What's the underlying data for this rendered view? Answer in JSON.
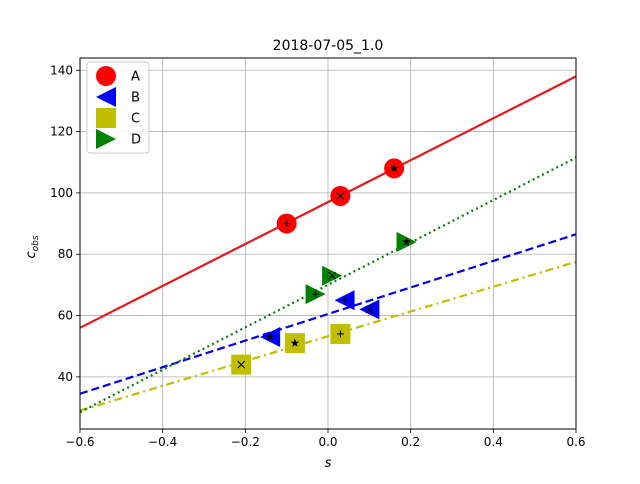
{
  "chart_data": {
    "type": "scatter",
    "title": "2018-07-05_1.0",
    "xlabel": "s",
    "ylabel": {
      "base": "c",
      "sub": "obs"
    },
    "xlim": [
      -0.6,
      0.6
    ],
    "ylim": [
      23,
      144
    ],
    "xticks": [
      -0.6,
      -0.4,
      -0.2,
      0.0,
      0.2,
      0.4,
      0.6
    ],
    "xtick_labels": [
      "−0.6",
      "−0.4",
      "−0.2",
      "0.0",
      "0.2",
      "0.4",
      "0.6"
    ],
    "yticks": [
      40,
      60,
      80,
      100,
      120,
      140
    ],
    "ytick_labels": [
      "40",
      "60",
      "80",
      "100",
      "120",
      "140"
    ],
    "grid": true,
    "legend_position": "top-left",
    "series": [
      {
        "name": "A",
        "color": "#ff0000",
        "line_color": "#e41a1c",
        "marker": "circle",
        "linestyle": "solid",
        "points": [
          {
            "x": -0.1,
            "y": 90,
            "mark": "+"
          },
          {
            "x": 0.03,
            "y": 99,
            "mark": "x"
          },
          {
            "x": 0.16,
            "y": 108,
            "mark": "*"
          }
        ],
        "line": {
          "x": [
            -0.6,
            0.6
          ],
          "y": [
            56,
            138
          ]
        }
      },
      {
        "name": "B",
        "color": "#0000ff",
        "line_color": "#0000ee",
        "marker": "triangle-left",
        "linestyle": "dashed",
        "points": [
          {
            "x": -0.14,
            "y": 53,
            "mark": "*"
          },
          {
            "x": 0.04,
            "y": 65,
            "mark": "+"
          },
          {
            "x": 0.1,
            "y": 62,
            "mark": "x"
          }
        ],
        "line": {
          "x": [
            -0.6,
            0.6
          ],
          "y": [
            34.5,
            86.5
          ]
        }
      },
      {
        "name": "C",
        "color": "#bfbf00",
        "line_color": "#bfbf00",
        "marker": "square",
        "linestyle": "dashdot",
        "points": [
          {
            "x": -0.21,
            "y": 44,
            "mark": "x"
          },
          {
            "x": -0.08,
            "y": 51,
            "mark": "*"
          },
          {
            "x": 0.03,
            "y": 54,
            "mark": "+"
          }
        ],
        "line": {
          "x": [
            -0.6,
            0.6
          ],
          "y": [
            29,
            77.5
          ]
        }
      },
      {
        "name": "D",
        "color": "#008000",
        "line_color": "#008000",
        "marker": "triangle-right",
        "linestyle": "dotted",
        "points": [
          {
            "x": -0.03,
            "y": 67,
            "mark": "+"
          },
          {
            "x": 0.01,
            "y": 73,
            "mark": "x"
          },
          {
            "x": 0.19,
            "y": 84,
            "mark": "*"
          }
        ],
        "line": {
          "x": [
            -0.6,
            0.6
          ],
          "y": [
            28.5,
            111.5
          ]
        }
      }
    ]
  }
}
